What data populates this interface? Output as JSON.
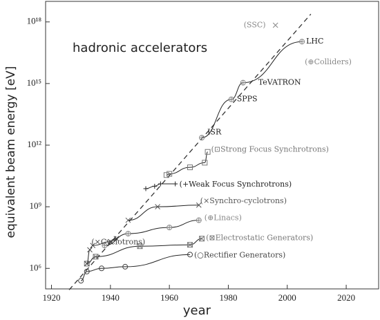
{
  "chart_data": {
    "type": "line",
    "annotation": "hadronic accelerators",
    "x_label": "year",
    "y_label": "equivalent beam energy [eV]",
    "log_y": true,
    "xlim": [
      1918,
      2031
    ],
    "ylim": [
      100000,
      10000000000000000000
    ],
    "xticks": [
      1920,
      1940,
      1960,
      1980,
      2000,
      2020
    ],
    "yticks": [
      {
        "value": 1000000,
        "label": "10⁶"
      },
      {
        "value": 1000000000,
        "label": "10⁹"
      },
      {
        "value": 1000000000000,
        "label": "10¹²"
      },
      {
        "value": 1000000000000000,
        "label": "10¹⁵"
      },
      {
        "value": 1000000000000000000,
        "label": "10¹⁸"
      }
    ],
    "trend_line": {
      "x": [
        1926,
        2008
      ],
      "values": [
        90000,
        2400000000000000000
      ]
    },
    "series": [
      {
        "name": "(○Rectifier Generators)",
        "marker": "circle",
        "color": "#444",
        "x": [
          1930,
          1932,
          1937,
          1945,
          1967
        ],
        "values": [
          250000,
          700000,
          1000000,
          1200000,
          4700000
        ]
      },
      {
        "name": "(⊠Electrostatic Generators)",
        "marker": "boxx",
        "color": "#777",
        "x": [
          1932,
          1935,
          1950,
          1967,
          1971
        ],
        "values": [
          1700000,
          3700000,
          12000000,
          14000000,
          28000000
        ]
      },
      {
        "name": "(×Cyclotrons)",
        "marker": "x",
        "color": "#444",
        "x": [
          1932,
          1933,
          1934,
          1940,
          1942
        ],
        "values": [
          1700000,
          8000000,
          13000000,
          20000000,
          28000000
        ]
      },
      {
        "name": "(⊕Linacs)",
        "marker": "circleplus",
        "color": "#888",
        "x": [
          1938,
          1946,
          1960,
          1970
        ],
        "values": [
          13000000,
          49000000,
          98000000,
          220000000
        ]
      },
      {
        "name": "(×Synchro-cyclotrons)",
        "marker": "x",
        "color": "#555",
        "x": [
          1946,
          1956,
          1970
        ],
        "values": [
          220000000,
          1000000000,
          1200000000
        ]
      },
      {
        "name": "(+Weak Focus Synchrotrons)",
        "marker": "plus",
        "color": "#222",
        "x": [
          1952,
          1955,
          1957,
          1962
        ],
        "values": [
          7600000000,
          10000000000,
          13000000000,
          13000000000
        ]
      },
      {
        "name": "(⊡Strong Focus Synchrotrons)",
        "marker": "square",
        "color": "#777",
        "x": [
          1959,
          1960,
          1967,
          1972,
          1973
        ],
        "values": [
          35000000000,
          40000000000,
          83000000000,
          140000000000,
          470000000000
        ]
      },
      {
        "name": "(⊕Colliders)",
        "marker": "circleplus",
        "color": "#888",
        "x": [
          1971,
          1981,
          1985,
          2005
        ],
        "values": [
          2300000000000,
          170000000000000,
          1100000000000000,
          110000000000000000
        ],
        "point_labels": [
          "ISR",
          "SPPS",
          "TeVATRON",
          "LHC"
        ]
      },
      {
        "name": "(SSC)",
        "marker": "x",
        "color": "#888",
        "line": false,
        "x": [
          1996
        ],
        "values": [
          690000000000000000
        ]
      }
    ]
  }
}
